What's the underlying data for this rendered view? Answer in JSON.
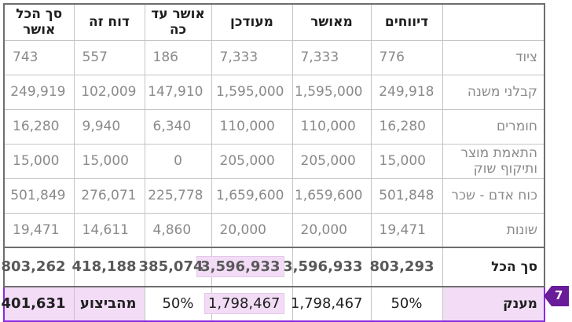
{
  "headers": {
    "category": "",
    "reports": "דיווחים",
    "approved": "מאושר",
    "updated": "מעודכן",
    "approved_to_date": "אושר עד כה",
    "this_report": "דוח זה",
    "total_approved": "סך הכל אושר"
  },
  "rows": [
    {
      "label": "ציוד",
      "reports": "776",
      "approved": "7,333",
      "updated": "7,333",
      "approved_to_date": "186",
      "this_report": "557",
      "total_approved": "743"
    },
    {
      "label": "קבלני משנה",
      "reports": "249,918",
      "approved": "1,595,000",
      "updated": "1,595,000",
      "approved_to_date": "147,910",
      "this_report": "102,009",
      "total_approved": "249,919"
    },
    {
      "label": "חומרים",
      "reports": "16,280",
      "approved": "110,000",
      "updated": "110,000",
      "approved_to_date": "6,340",
      "this_report": "9,940",
      "total_approved": "16,280"
    },
    {
      "label": "התאמת מוצר ותיקוף שוק",
      "reports": "15,000",
      "approved": "205,000",
      "updated": "205,000",
      "approved_to_date": "0",
      "this_report": "15,000",
      "total_approved": "15,000"
    },
    {
      "label": "כוח אדם - שכר",
      "reports": "501,848",
      "approved": "1,659,600",
      "updated": "1,659,600",
      "approved_to_date": "225,778",
      "this_report": "276,071",
      "total_approved": "501,849"
    },
    {
      "label": "שונות",
      "reports": "19,471",
      "approved": "20,000",
      "updated": "20,000",
      "approved_to_date": "4,860",
      "this_report": "14,611",
      "total_approved": "19,471"
    }
  ],
  "total": {
    "label": "סך הכל",
    "reports": "803,293",
    "approved": "3,596,933",
    "updated": "3,596,933",
    "approved_to_date": "385,074",
    "this_report": "418,188",
    "total_approved": "803,262"
  },
  "grant": {
    "label": "מענק",
    "reports": "50%",
    "approved": "1,798,467",
    "updated": "1,798,467",
    "approved_to_date": "50%",
    "this_report": "מהביצוע",
    "total_approved": "401,631"
  },
  "badge": {
    "number": "7"
  },
  "colors": {
    "highlight": "#f2dcf6",
    "accent": "#8a2be2",
    "badge": "#6a1b9a"
  }
}
